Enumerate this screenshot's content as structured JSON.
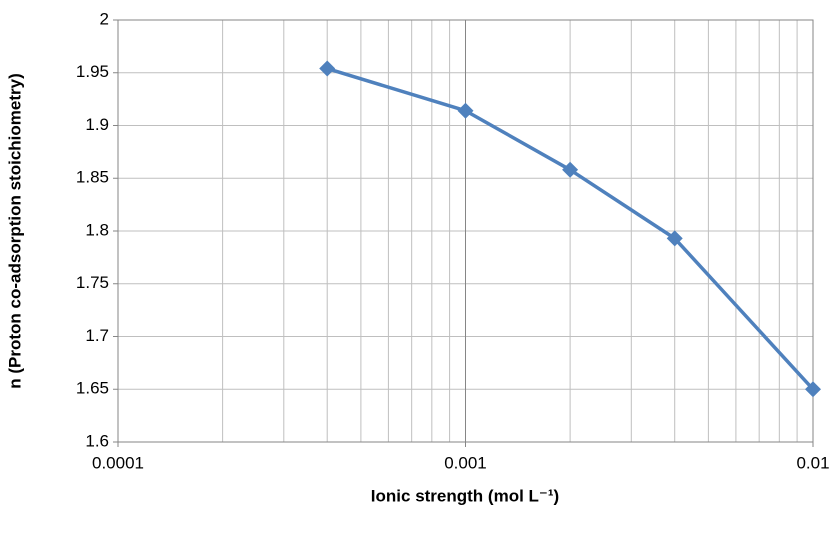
{
  "chart_data": {
    "type": "line",
    "x_axis_label": "Ionic strength (mol L⁻¹)",
    "y_axis_label": "n (Proton co-adsorption stoichiometry)",
    "x": [
      0.0004,
      0.001,
      0.002,
      0.004,
      0.01
    ],
    "series": [
      {
        "color": "#4f81bd",
        "values": [
          1.954,
          1.914,
          1.858,
          1.793,
          1.65
        ]
      }
    ],
    "x_log_scale": true,
    "xlim": [
      0.0001,
      0.01
    ],
    "xticks": [
      0.0001,
      0.001,
      0.01
    ],
    "xminorticks": [
      0.0002,
      0.0003,
      0.0004,
      0.0005,
      0.0006,
      0.0007,
      0.0008,
      0.0009,
      0.002,
      0.003,
      0.004,
      0.005,
      0.006,
      0.007,
      0.008,
      0.009
    ],
    "ylim": [
      1.6,
      2
    ],
    "yticks": [
      1.6,
      1.65,
      1.7,
      1.75,
      1.8,
      1.85,
      1.9,
      1.95,
      2
    ],
    "grid": true
  }
}
